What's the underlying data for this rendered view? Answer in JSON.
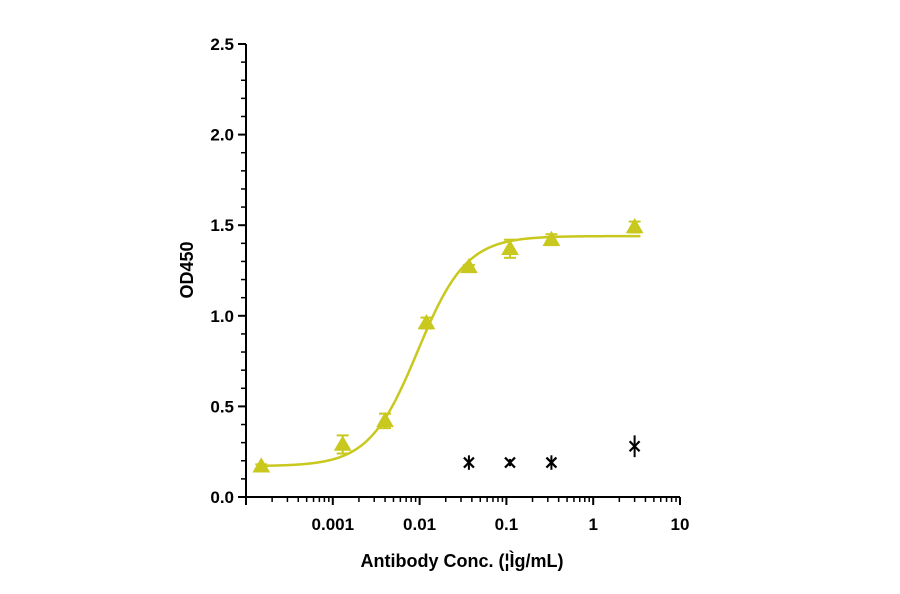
{
  "chart_data": {
    "type": "scatter",
    "xlabel": "Antibody Conc. (¦Ìg/mL)",
    "ylabel": "OD450",
    "x_scale": "log",
    "xlim": [
      0.0001,
      10
    ],
    "ylim": [
      0,
      2.5
    ],
    "grid": false,
    "legend": "none",
    "x_ticks": [
      {
        "value": 0.001,
        "label": "0.001"
      },
      {
        "value": 0.01,
        "label": "0.01"
      },
      {
        "value": 0.1,
        "label": "0.1"
      },
      {
        "value": 1,
        "label": "1"
      },
      {
        "value": 10,
        "label": "10"
      }
    ],
    "y_ticks": [
      {
        "value": 0.0,
        "label": "0.0"
      },
      {
        "value": 0.5,
        "label": "0.5"
      },
      {
        "value": 1.0,
        "label": "1.0"
      },
      {
        "value": 1.5,
        "label": "1.5"
      },
      {
        "value": 2.0,
        "label": "2.0"
      },
      {
        "value": 2.5,
        "label": "2.5"
      }
    ],
    "series": [
      {
        "marker": "triangle",
        "color": "#c8c81e",
        "fit_curve": {
          "bottom": 0.17,
          "top": 1.44,
          "ec50": 0.0095,
          "hill": 1.55
        },
        "points": [
          {
            "x": 0.00015,
            "y": 0.17,
            "err": 0.01
          },
          {
            "x": 0.0013,
            "y": 0.29,
            "err": 0.05
          },
          {
            "x": 0.004,
            "y": 0.42,
            "err": 0.04
          },
          {
            "x": 0.012,
            "y": 0.96,
            "err": 0.03
          },
          {
            "x": 0.037,
            "y": 1.27,
            "err": 0.01
          },
          {
            "x": 0.11,
            "y": 1.37,
            "err": 0.05
          },
          {
            "x": 0.33,
            "y": 1.42,
            "err": 0.03
          },
          {
            "x": 3.0,
            "y": 1.49,
            "err": 0.03
          }
        ]
      },
      {
        "marker": "x",
        "color": "#000000",
        "points": [
          {
            "x": 0.037,
            "y": 0.19,
            "err": 0.04
          },
          {
            "x": 0.11,
            "y": 0.19,
            "err": 0.02
          },
          {
            "x": 0.33,
            "y": 0.19,
            "err": 0.04
          },
          {
            "x": 3.0,
            "y": 0.28,
            "err": 0.06
          }
        ]
      }
    ]
  }
}
